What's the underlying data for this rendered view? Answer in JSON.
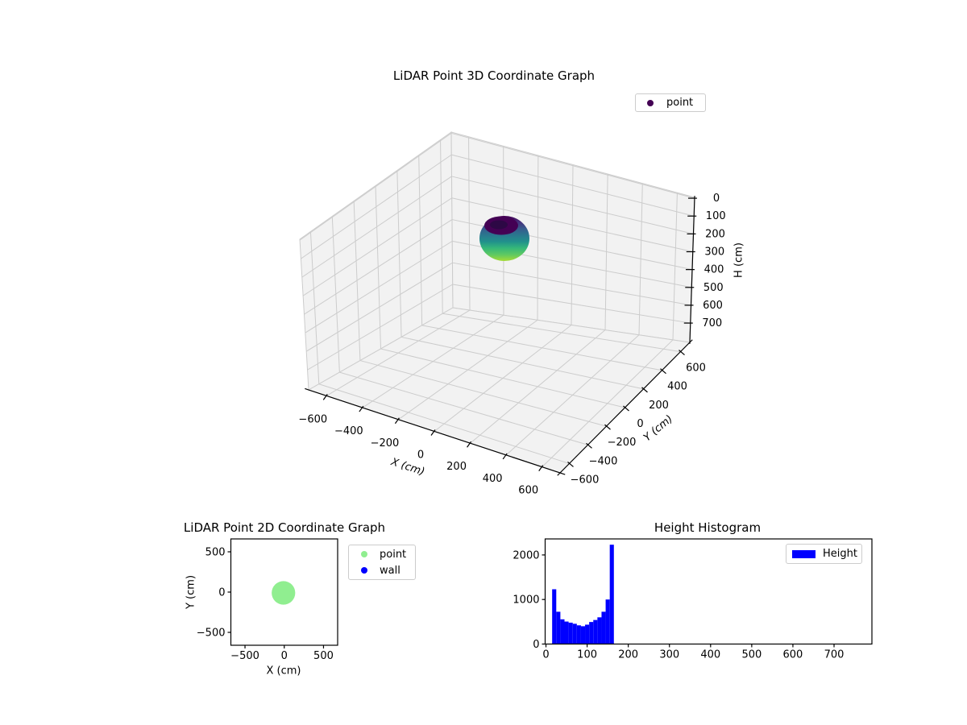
{
  "figure": {
    "background": "#ffffff"
  },
  "chart_data": [
    {
      "type": "scatter3d",
      "title": "LiDAR Point 3D Coordinate Graph",
      "xlabel": "X (cm)",
      "ylabel": "Y (cm)",
      "zlabel": "H (cm)",
      "xticks": [
        -600,
        -400,
        -200,
        0,
        200,
        400,
        600
      ],
      "yticks": [
        -600,
        -400,
        -200,
        0,
        200,
        400,
        600
      ],
      "zticks": [
        0,
        100,
        200,
        300,
        400,
        500,
        600,
        700
      ],
      "xlim": [
        -700,
        700
      ],
      "ylim": [
        -700,
        700
      ],
      "zlim": [
        0,
        700
      ],
      "zaxis_inverted": true,
      "grid": true,
      "pane_color": "#f2f2f2",
      "grid_color": "#cccccc",
      "legend_position": "upper right (outside axes)",
      "legend": [
        {
          "label": "point",
          "color": "#440154",
          "marker": "circle"
        }
      ],
      "series": [
        {
          "name": "point",
          "description": "dense spherical LiDAR point cloud centered near x=0, y=0, heights ~15-165 cm, colored by height with viridis (dark purple at top, yellow-green at bottom), dark ring dimple on top",
          "center": {
            "x": 0,
            "y": 0
          },
          "radius_cm": 150,
          "h_range": [
            15,
            165
          ],
          "colormap": "viridis",
          "colormap_stops": [
            "#440154",
            "#46327e",
            "#365c8d",
            "#2a788e",
            "#21918c",
            "#35b779",
            "#5ec962",
            "#a5db36"
          ],
          "top_cap_color": "#440154",
          "top_ring_color": "#2d0845"
        }
      ]
    },
    {
      "type": "scatter",
      "title": "LiDAR Point 2D Coordinate Graph",
      "xlabel": "X (cm)",
      "ylabel": "Y (cm)",
      "xticks": [
        -500,
        0,
        500
      ],
      "yticks": [
        500,
        0,
        -500
      ],
      "xlim": [
        -680,
        680
      ],
      "ylim": [
        -660,
        660
      ],
      "grid": false,
      "legend_position": "outside upper right",
      "legend": [
        {
          "label": "point",
          "color": "#90ee90",
          "marker": "circle"
        },
        {
          "label": "wall",
          "color": "#0000ff",
          "marker": "circle"
        }
      ],
      "series": [
        {
          "name": "point",
          "color": "#90ee90",
          "center": {
            "x": 0,
            "y": 0
          },
          "radius_cm": 150,
          "description": "solid round cluster of points at origin"
        },
        {
          "name": "wall",
          "color": "#0000ff",
          "description": "no wall points visible in plot area"
        }
      ]
    },
    {
      "type": "histogram",
      "title": "Height Histogram",
      "xlabel": "",
      "ylabel": "",
      "xticks": [
        0,
        100,
        200,
        300,
        400,
        500,
        600,
        700
      ],
      "yticks": [
        0,
        1000,
        2000
      ],
      "xlim": [
        -2,
        792
      ],
      "ylim": [
        0,
        2360
      ],
      "grid": false,
      "legend_position": "upper right (inside axes)",
      "legend": [
        {
          "label": "Height",
          "color": "#0000ff",
          "marker": "rect"
        }
      ],
      "bar_color": "#0000ff",
      "bin_start": 15,
      "bin_width": 10,
      "counts": [
        1230,
        725,
        555,
        505,
        480,
        455,
        420,
        400,
        435,
        495,
        540,
        600,
        725,
        1000,
        2230
      ]
    }
  ]
}
